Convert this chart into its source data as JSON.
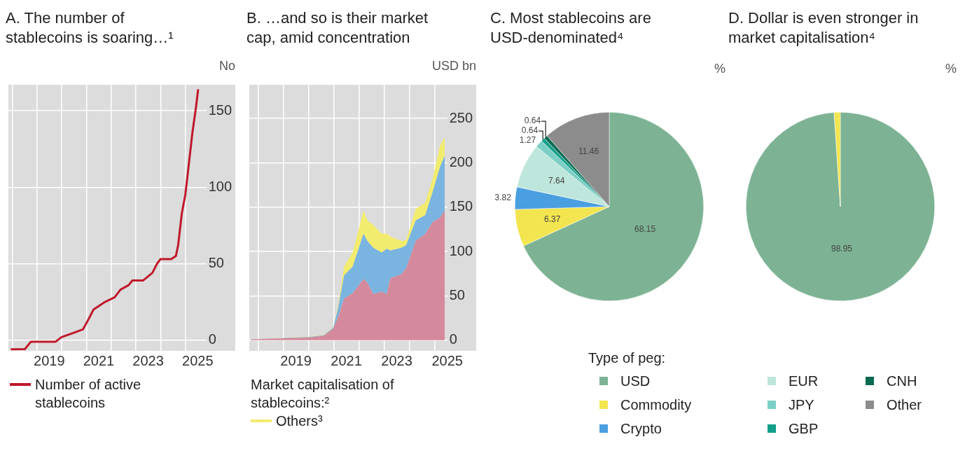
{
  "chart_data": [
    {
      "type": "line",
      "title": "A. The number of stablecoins is soaring…¹",
      "ylabel": "No",
      "x": [
        2017.95,
        2018.52,
        2018.76,
        2019.76,
        2020.0,
        2020.52,
        2020.86,
        2021.1,
        2021.29,
        2021.76,
        2022.14,
        2022.38,
        2022.71,
        2022.86,
        2023.29,
        2023.67,
        2023.86,
        2024.0,
        2024.43,
        2024.62,
        2024.71,
        2024.86,
        2025.0,
        2025.1,
        2025.29,
        2025.43,
        2025.52
      ],
      "series": [
        {
          "name": "Number of active stablecoins",
          "color": "#c0182b",
          "values": [
            -6,
            -5.8,
            -1,
            -1,
            2,
            5,
            7,
            14,
            20,
            25,
            28,
            33,
            36,
            39,
            39,
            44,
            50,
            53,
            53,
            55,
            62,
            83,
            95,
            109,
            136,
            152,
            164
          ]
        }
      ],
      "xlim": [
        2017.85,
        2025.85
      ],
      "xticks": [
        {
          "value": 2018,
          "label": null
        },
        {
          "value": 2019,
          "label": null
        },
        {
          "value": 2019.5,
          "label": "2019"
        },
        {
          "value": 2020,
          "label": null
        },
        {
          "value": 2021,
          "label": null
        },
        {
          "value": 2021.5,
          "label": "2021"
        },
        {
          "value": 2022,
          "label": null
        },
        {
          "value": 2023,
          "label": null
        },
        {
          "value": 2023.5,
          "label": "2023"
        },
        {
          "value": 2024,
          "label": null
        },
        {
          "value": 2025,
          "label": null
        },
        {
          "value": 2025.5,
          "label": "2025"
        }
      ],
      "ylim": [
        -7,
        167
      ],
      "yticks": [
        0,
        50,
        100,
        150
      ],
      "grid": true,
      "legend": "bottom"
    },
    {
      "type": "area",
      "stacked": true,
      "title": "B. …and so is their market cap, amid concentration",
      "ylabel": "USD bn",
      "legend_title": "Market capitalisation of stablecoins:²",
      "x": [
        2017.71,
        2020.02,
        2020.6,
        2020.98,
        2021.17,
        2021.41,
        2021.75,
        2022.18,
        2022.33,
        2022.57,
        2022.9,
        2023.1,
        2023.24,
        2023.67,
        2023.87,
        2024.25,
        2024.63,
        2024.92,
        2025.21,
        2025.4
      ],
      "series": [
        {
          "color": "#d48a9c",
          "values": [
            1,
            3,
            5,
            13,
            26,
            47,
            53,
            69,
            65,
            52,
            55,
            52,
            70,
            74,
            81,
            112,
            120,
            133,
            138,
            146
          ]
        },
        {
          "color": "#7ab4e0",
          "values": [
            0,
            0.5,
            0.5,
            1,
            10,
            26,
            30,
            51,
            47,
            52,
            44,
            51,
            31,
            30,
            26,
            23,
            21,
            34,
            57,
            62
          ]
        },
        {
          "name": "Others³",
          "color": "#f2ec6e",
          "values": [
            0,
            0.5,
            0.5,
            0.5,
            3,
            10,
            16,
            26,
            23,
            26,
            21,
            17,
            16,
            8,
            6,
            13,
            14,
            15,
            24,
            21
          ]
        }
      ],
      "xlim": [
        2017.65,
        2025.5
      ],
      "xticks": [
        {
          "value": 2018,
          "label": null
        },
        {
          "value": 2019,
          "label": null
        },
        {
          "value": 2019.5,
          "label": "2019"
        },
        {
          "value": 2020,
          "label": null
        },
        {
          "value": 2021,
          "label": null
        },
        {
          "value": 2021.5,
          "label": "2021"
        },
        {
          "value": 2022,
          "label": null
        },
        {
          "value": 2023,
          "label": null
        },
        {
          "value": 2023.5,
          "label": "2023"
        },
        {
          "value": 2024,
          "label": null
        },
        {
          "value": 2025,
          "label": null
        },
        {
          "value": 2025.5,
          "label": "2025"
        }
      ],
      "ylim": [
        -12,
        288
      ],
      "yticks": [
        0,
        50,
        100,
        150,
        200,
        250
      ],
      "grid": true,
      "legend": "bottom"
    },
    {
      "type": "pie",
      "title": "C. Most stablecoins are USD-denominated⁴",
      "ylabel": "%",
      "legend_title": "Type of peg:",
      "legend": "bottom",
      "data_labels": true,
      "categories": [
        "USD",
        "Commodity",
        "Crypto",
        "EUR",
        "JPY",
        "GBP",
        "CNH",
        "Other"
      ],
      "values": [
        68.15,
        6.37,
        3.82,
        7.64,
        1.27,
        0.64,
        0.64,
        11.46
      ],
      "colors": [
        "#7db394",
        "#f3e54f",
        "#4a9fe0",
        "#bfe6dc",
        "#7ccfc4",
        "#13a08a",
        "#0a6a52",
        "#8c8c8c"
      ]
    },
    {
      "type": "pie",
      "title": "D. Dollar is even stronger in market capitalisation⁴",
      "ylabel": "%",
      "categories": [
        null,
        null
      ],
      "values": [
        98.95,
        1.05
      ],
      "value_labels": [
        "98.95",
        null
      ],
      "colors": [
        "#7db394",
        "#f3e54f"
      ]
    }
  ]
}
